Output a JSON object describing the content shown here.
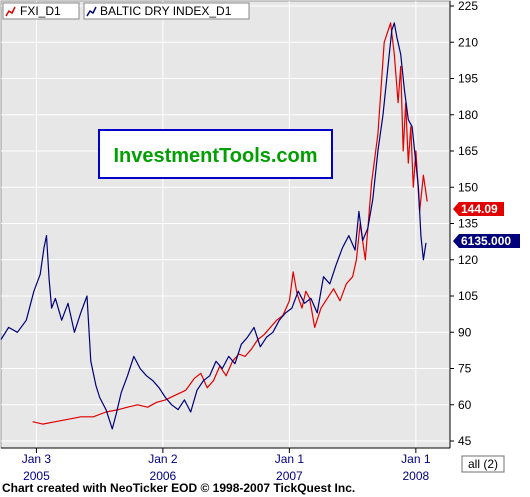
{
  "chart_data": {
    "type": "line",
    "watermark": "InvestmentTools.com",
    "footer": "Chart created with NeoTicker EOD © 1998-2007 TickQuest Inc.",
    "range_button": "all (2)",
    "legend": [
      {
        "label": "FXI_D1",
        "color": "#e00000"
      },
      {
        "label": "BALTIC DRY INDEX_D1",
        "color": "#00007a"
      }
    ],
    "y_axis": {
      "ticks": [
        "225",
        "210",
        "195",
        "180",
        "165",
        "150",
        "135",
        "120",
        "105",
        "90",
        "75",
        "60",
        "45"
      ],
      "ylim": [
        45,
        225
      ]
    },
    "x_axis": {
      "ticks": [
        {
          "date": "Jan 3",
          "year": "2005",
          "t": 2005.0
        },
        {
          "date": "Jan 2",
          "year": "2006",
          "t": 2006.0
        },
        {
          "date": "Jan 1",
          "year": "2007",
          "t": 2007.0
        },
        {
          "date": "Jan 1",
          "year": "2008",
          "t": 2008.0
        }
      ],
      "xlim": [
        2004.72,
        2008.27
      ]
    },
    "series": [
      {
        "name": "FXI_D1",
        "color": "#e00000",
        "last_value_label": "144.09",
        "t": [
          2004.97,
          2005.05,
          2005.15,
          2005.25,
          2005.35,
          2005.45,
          2005.55,
          2005.65,
          2005.72,
          2005.8,
          2005.88,
          2005.95,
          2006.02,
          2006.1,
          2006.18,
          2006.25,
          2006.3,
          2006.35,
          2006.4,
          2006.45,
          2006.5,
          2006.55,
          2006.6,
          2006.65,
          2006.7,
          2006.75,
          2006.8,
          2006.85,
          2006.9,
          2006.95,
          2007.0,
          2007.03,
          2007.06,
          2007.1,
          2007.13,
          2007.16,
          2007.2,
          2007.25,
          2007.3,
          2007.35,
          2007.4,
          2007.45,
          2007.5,
          2007.53,
          2007.56,
          2007.6,
          2007.65,
          2007.7,
          2007.75,
          2007.8,
          2007.83,
          2007.86,
          2007.88,
          2007.9,
          2007.92,
          2007.94,
          2007.96,
          2007.98,
          2008.0,
          2008.03,
          2008.06,
          2008.09
        ],
        "values": [
          53,
          52,
          53,
          54,
          55,
          55,
          57,
          58,
          59,
          60,
          59,
          61,
          62,
          64,
          66,
          71,
          73,
          67,
          70,
          76,
          72,
          78,
          81,
          80,
          83,
          87,
          89,
          92,
          95,
          97,
          103,
          115,
          106,
          100,
          107,
          104,
          92,
          100,
          104,
          108,
          103,
          110,
          113,
          120,
          135,
          120,
          152,
          172,
          210,
          218,
          205,
          185,
          200,
          165,
          185,
          160,
          175,
          150,
          165,
          140,
          155,
          144.09
        ]
      },
      {
        "name": "BALTIC DRY INDEX_D1",
        "color": "#00007a",
        "last_value_label": "6135.000",
        "t": [
          2004.72,
          2004.78,
          2004.85,
          2004.92,
          2004.98,
          2005.03,
          2005.06,
          2005.08,
          2005.1,
          2005.12,
          2005.15,
          2005.2,
          2005.25,
          2005.3,
          2005.35,
          2005.4,
          2005.43,
          2005.47,
          2005.5,
          2005.55,
          2005.6,
          2005.63,
          2005.67,
          2005.72,
          2005.77,
          2005.82,
          2005.87,
          2005.92,
          2005.97,
          2006.02,
          2006.07,
          2006.12,
          2006.17,
          2006.22,
          2006.27,
          2006.32,
          2006.37,
          2006.42,
          2006.47,
          2006.52,
          2006.57,
          2006.62,
          2006.67,
          2006.72,
          2006.77,
          2006.82,
          2006.87,
          2006.92,
          2006.97,
          2007.02,
          2007.07,
          2007.12,
          2007.17,
          2007.22,
          2007.27,
          2007.32,
          2007.37,
          2007.42,
          2007.47,
          2007.52,
          2007.55,
          2007.58,
          2007.62,
          2007.66,
          2007.7,
          2007.74,
          2007.78,
          2007.81,
          2007.83,
          2007.85,
          2007.88,
          2007.91,
          2007.94,
          2007.97,
          2008.0,
          2008.02,
          2008.04,
          2008.06,
          2008.08
        ],
        "values": [
          87,
          92,
          90,
          95,
          107,
          114,
          125,
          130,
          112,
          100,
          104,
          95,
          102,
          90,
          98,
          105,
          78,
          68,
          63,
          58,
          50,
          56,
          65,
          72,
          80,
          75,
          72,
          70,
          67,
          63,
          60,
          58,
          62,
          57,
          66,
          70,
          72,
          78,
          75,
          80,
          77,
          85,
          88,
          92,
          84,
          88,
          90,
          95,
          98,
          100,
          107,
          102,
          104,
          98,
          113,
          110,
          118,
          125,
          130,
          124,
          140,
          128,
          133,
          145,
          165,
          180,
          200,
          215,
          218,
          212,
          205,
          190,
          178,
          175,
          160,
          150,
          130,
          120,
          127
        ]
      }
    ]
  }
}
